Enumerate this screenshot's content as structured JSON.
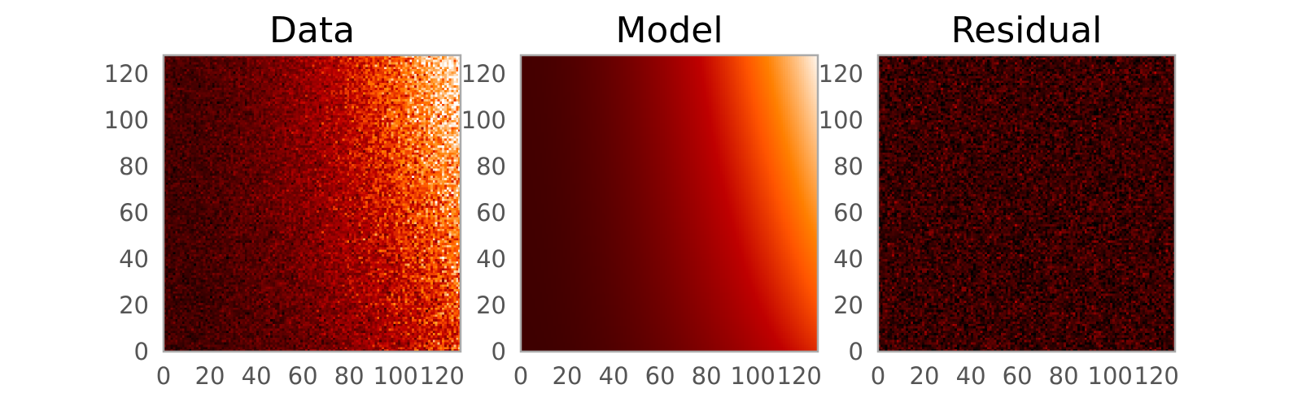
{
  "chart_data": [
    {
      "type": "heatmap",
      "title": "Data",
      "colormap": "gist_heat",
      "grid": false,
      "xlim": [
        0,
        128
      ],
      "ylim": [
        0,
        128
      ],
      "xticks": [
        0,
        20,
        40,
        60,
        80,
        100,
        120
      ],
      "yticks": [
        0,
        20,
        40,
        60,
        80,
        100,
        120
      ],
      "xtick_labels": [
        "0",
        "20",
        "40",
        "60",
        "80",
        "100",
        "120"
      ],
      "ytick_labels": [
        "0",
        "20",
        "40",
        "60",
        "80",
        "100",
        "120"
      ],
      "surface": {
        "description_values": "smooth gradient plus pixel noise",
        "corner_values": {
          "x0_y0": 0.16,
          "x128_y0": 0.58,
          "x0_y128": 0.18,
          "x128_y128": 0.98
        },
        "gradient_exponent": 1.8,
        "noise_level": 0.09
      }
    },
    {
      "type": "heatmap",
      "title": "Model",
      "colormap": "gist_heat",
      "grid": false,
      "xlim": [
        0,
        128
      ],
      "ylim": [
        0,
        128
      ],
      "xticks": [
        0,
        20,
        40,
        60,
        80,
        100,
        120
      ],
      "yticks": [
        0,
        20,
        40,
        60,
        80,
        100,
        120
      ],
      "xtick_labels": [
        "0",
        "20",
        "40",
        "60",
        "80",
        "100",
        "120"
      ],
      "ytick_labels": [
        "0",
        "20",
        "40",
        "60",
        "80",
        "100",
        "120"
      ],
      "surface": {
        "corner_values": {
          "x0_y0": 0.16,
          "x128_y0": 0.58,
          "x0_y128": 0.18,
          "x128_y128": 0.98
        },
        "gradient_exponent": 1.8,
        "noise_level": 0.0
      }
    },
    {
      "type": "heatmap",
      "title": "Residual",
      "colormap": "gist_heat",
      "grid": false,
      "xlim": [
        0,
        128
      ],
      "ylim": [
        0,
        128
      ],
      "xticks": [
        0,
        20,
        40,
        60,
        80,
        100,
        120
      ],
      "yticks": [
        0,
        20,
        40,
        60,
        80,
        100,
        120
      ],
      "xtick_labels": [
        "0",
        "20",
        "40",
        "60",
        "80",
        "100",
        "120"
      ],
      "ytick_labels": [
        "0",
        "20",
        "40",
        "60",
        "80",
        "100",
        "120"
      ],
      "surface": {
        "corner_values": {
          "x0_y0": 0.15,
          "x128_y0": 0.15,
          "x0_y128": 0.15,
          "x128_y128": 0.15
        },
        "gradient_exponent": 1.0,
        "noise_level": 0.09
      }
    }
  ]
}
